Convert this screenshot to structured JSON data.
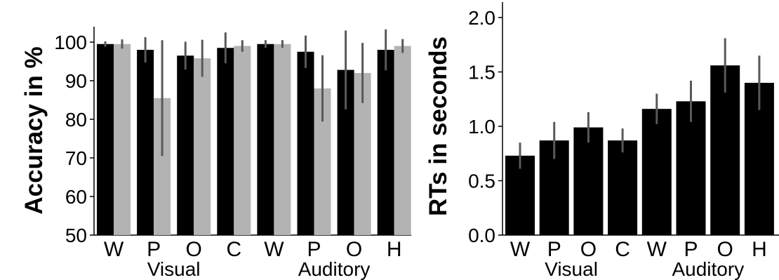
{
  "chart_data": [
    {
      "type": "bar",
      "ylabel": "Accuracy in %",
      "ylim": [
        50,
        100
      ],
      "yticks": [
        "50",
        "60",
        "70",
        "80",
        "90",
        "100"
      ],
      "categories": [
        "W",
        "P",
        "O",
        "C",
        "W",
        "P",
        "O",
        "H"
      ],
      "groups": [
        {
          "label": "Visual",
          "span": [
            0,
            3
          ]
        },
        {
          "label": "Auditory",
          "span": [
            4,
            7
          ]
        }
      ],
      "series": [
        {
          "color": "#000000",
          "values": [
            99.5,
            98,
            96.5,
            98.5,
            99.5,
            97.5,
            92.8,
            98
          ],
          "errors": [
            0.7,
            3.3,
            3.6,
            4,
            1,
            4.2,
            10.2,
            5.3
          ]
        },
        {
          "color": "#b3b3b3",
          "values": [
            99.5,
            85.5,
            95.8,
            99,
            99.5,
            88,
            92,
            99
          ],
          "errors": [
            1.2,
            15,
            4.8,
            1.5,
            1,
            8.6,
            7.8,
            1.8
          ]
        }
      ],
      "error_color": "#595959",
      "grid": false,
      "legend": "none"
    },
    {
      "type": "bar",
      "ylabel": "RTs in seconds",
      "ylim": [
        0,
        2
      ],
      "yticks": [
        "0.0",
        "0.5",
        "1.0",
        "1.5",
        "2.0"
      ],
      "categories": [
        "W",
        "P",
        "O",
        "C",
        "W",
        "P",
        "O",
        "H"
      ],
      "groups": [
        {
          "label": "Visual",
          "span": [
            0,
            3
          ]
        },
        {
          "label": "Auditory",
          "span": [
            4,
            7
          ]
        }
      ],
      "series": [
        {
          "color": "#000000",
          "values": [
            0.73,
            0.87,
            0.99,
            0.87,
            1.16,
            1.23,
            1.56,
            1.4
          ],
          "errors": [
            0.12,
            0.17,
            0.14,
            0.11,
            0.14,
            0.19,
            0.25,
            0.25
          ]
        }
      ],
      "error_color": "#595959",
      "grid": false,
      "legend": "none"
    }
  ]
}
